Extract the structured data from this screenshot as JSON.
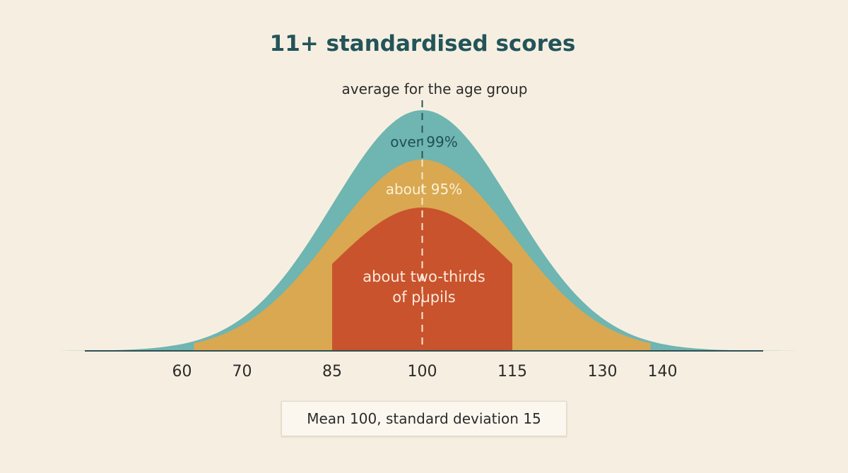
{
  "chart_data": {
    "type": "area",
    "title": "11+ standardised scores",
    "mean": 100,
    "sd": 15,
    "xlim": [
      40,
      162
    ],
    "x_ticks": [
      60,
      70,
      85,
      100,
      115,
      130,
      140
    ],
    "mean_annotation": "average for the age group",
    "bands": [
      {
        "label": "over 99%",
        "from": 40,
        "to": 162,
        "color": "#6fb5b1"
      },
      {
        "label": "about 95%",
        "from": 62,
        "to": 138,
        "color": "#d9a851"
      },
      {
        "label": "about two-thirds of pupils",
        "label_lines": [
          "about two-thirds",
          "of pupils"
        ],
        "from": 85,
        "to": 115,
        "color": "#c9532c"
      }
    ],
    "caption": "Mean 100, standard deviation 15"
  }
}
